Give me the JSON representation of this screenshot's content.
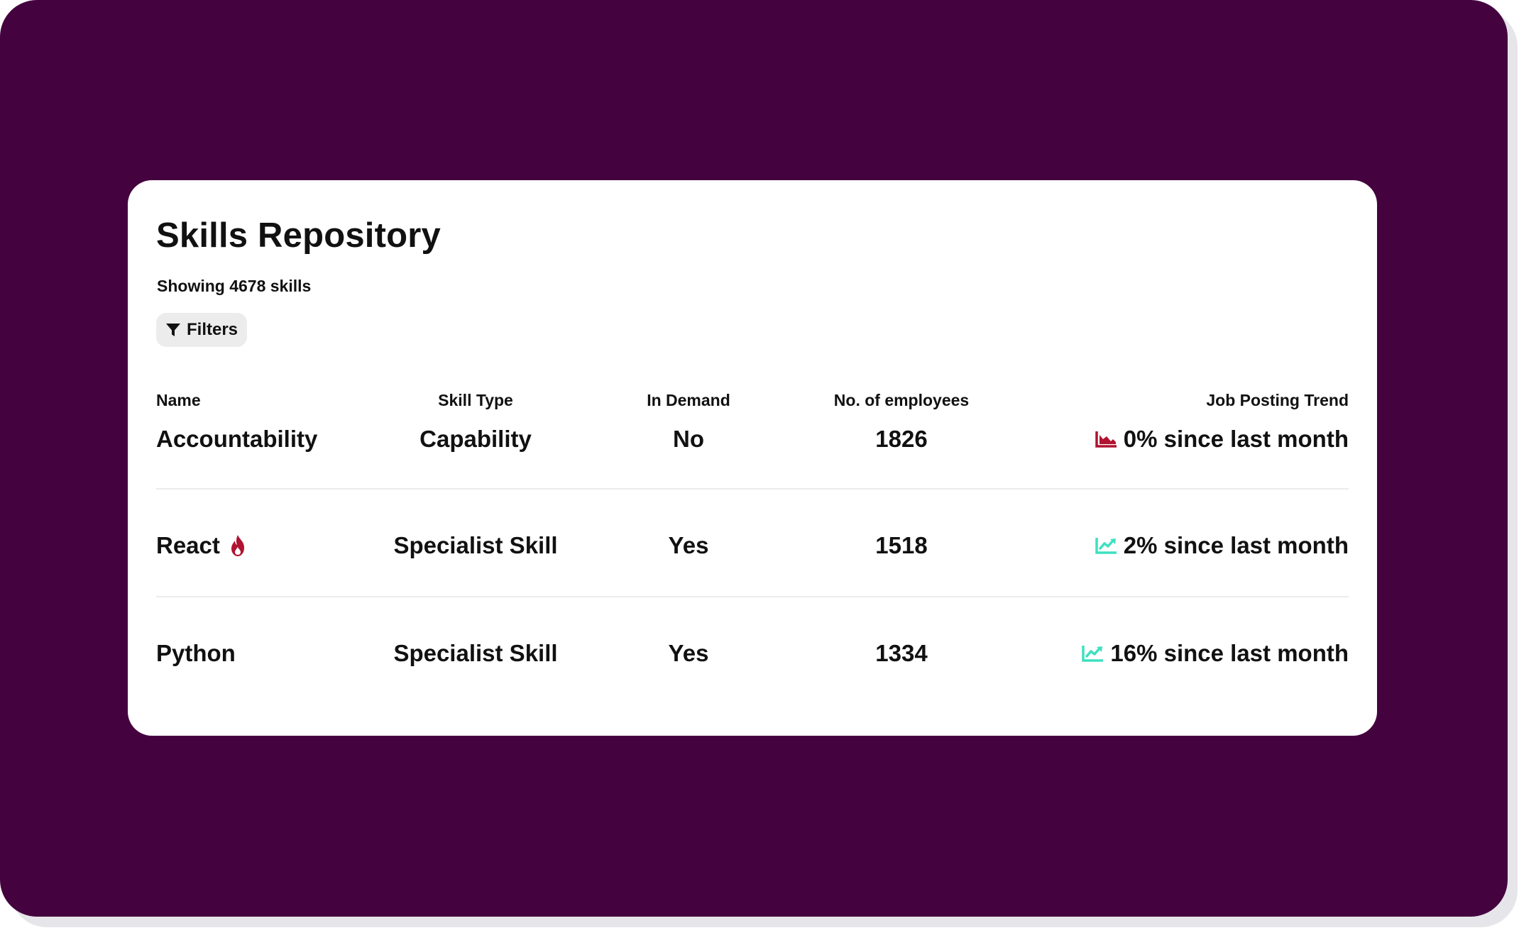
{
  "colors": {
    "background": "#44033f",
    "card": "#ffffff",
    "trend_down": "#b01230",
    "trend_up": "#3ee0c0",
    "hot": "#b01230"
  },
  "page": {
    "title": "Skills Repository",
    "subtitle": "Showing 4678 skills"
  },
  "filters": {
    "label": "Filters",
    "icon": "filter-icon"
  },
  "table": {
    "headers": {
      "name": "Name",
      "skill_type": "Skill Type",
      "in_demand": "In Demand",
      "employees": "No. of employees",
      "trend": "Job Posting Trend"
    },
    "rows": [
      {
        "name": "Accountability",
        "hot": false,
        "skill_type": "Capability",
        "in_demand": "No",
        "employees": "1826",
        "trend": "0% since last month",
        "trend_direction": "down",
        "trend_icon": "chart-down-icon"
      },
      {
        "name": "React",
        "hot": true,
        "hot_icon": "fire-icon",
        "skill_type": "Specialist Skill",
        "in_demand": "Yes",
        "employees": "1518",
        "trend": "2% since last month",
        "trend_direction": "up",
        "trend_icon": "chart-up-icon"
      },
      {
        "name": "Python",
        "hot": false,
        "skill_type": "Specialist Skill",
        "in_demand": "Yes",
        "employees": "1334",
        "trend": "16% since last month",
        "trend_direction": "up",
        "trend_icon": "chart-up-icon"
      }
    ]
  }
}
